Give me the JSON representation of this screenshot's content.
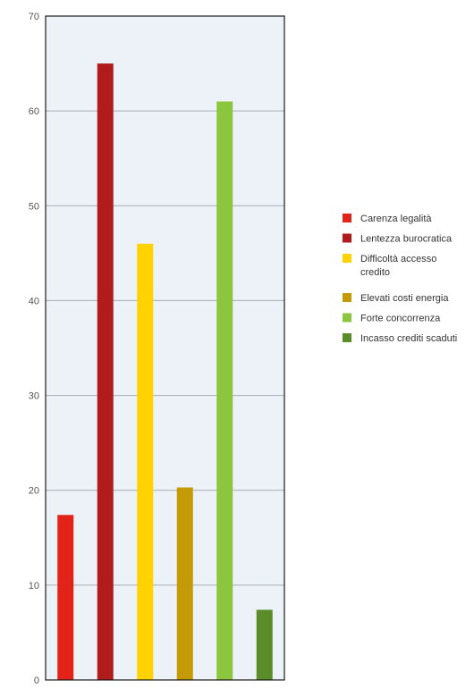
{
  "chart_data": {
    "type": "bar",
    "categories": [
      "Carenza legalità",
      "Lentezza burocratica",
      "Difficoltà accesso credito",
      "Elevati costi energia",
      "Forte concorrenza",
      "Incasso crediti scaduti"
    ],
    "values": [
      17.4,
      65.0,
      46.0,
      20.3,
      61.0,
      7.4
    ],
    "colors": [
      "#e2231a",
      "#b01c1c",
      "#ffd200",
      "#c49a06",
      "#8cc63f",
      "#5b8c2a"
    ],
    "y_ticks": [
      "0",
      "10",
      "20",
      "30",
      "40",
      "50",
      "60",
      "70"
    ],
    "ylim": [
      0,
      70
    ],
    "grid": true,
    "plot_background": "#edf2f8",
    "legend": {
      "position": "right",
      "entries": [
        {
          "label_lines": [
            "Carenza legalità"
          ],
          "color": "#e2231a"
        },
        {
          "label_lines": [
            "Lentezza burocratica"
          ],
          "color": "#b01c1c"
        },
        {
          "label_lines": [
            "Difficoltà accesso",
            "credito"
          ],
          "color": "#ffd200"
        },
        {
          "label_lines": [
            "Elevati costi energia"
          ],
          "color": "#c49a06"
        },
        {
          "label_lines": [
            "Forte concorrenza"
          ],
          "color": "#8cc63f"
        },
        {
          "label_lines": [
            "Incasso crediti scaduti"
          ],
          "color": "#5b8c2a"
        }
      ]
    }
  }
}
